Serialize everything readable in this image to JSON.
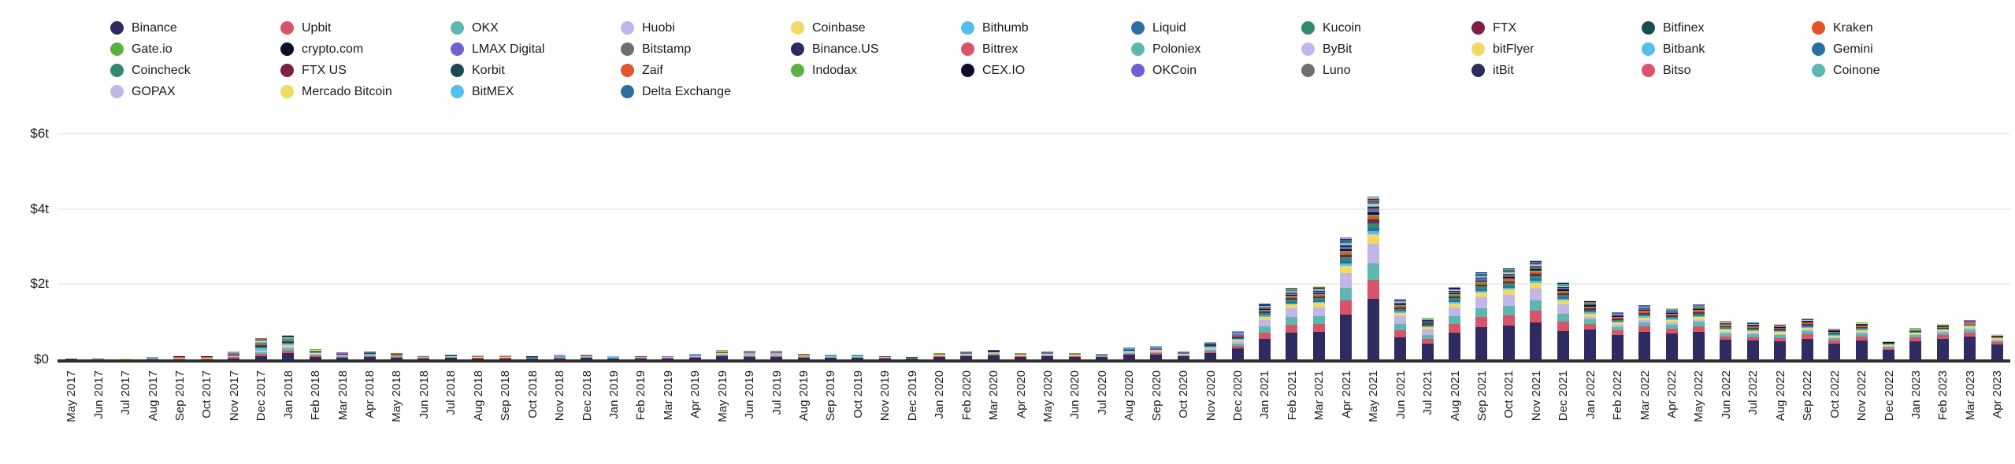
{
  "legend": {
    "items": [
      {
        "label": "Binance",
        "color": "#2e2a62"
      },
      {
        "label": "Upbit",
        "color": "#da5469"
      },
      {
        "label": "OKX",
        "color": "#5cb8ae"
      },
      {
        "label": "Huobi",
        "color": "#c1b6e9"
      },
      {
        "label": "Coinbase",
        "color": "#f2d964"
      },
      {
        "label": "Bithumb",
        "color": "#55bfeb"
      },
      {
        "label": "Liquid",
        "color": "#2d6da5"
      },
      {
        "label": "Kucoin",
        "color": "#33896e"
      },
      {
        "label": "FTX",
        "color": "#7d2045"
      },
      {
        "label": "Bitfinex",
        "color": "#1c4a54"
      },
      {
        "label": "Kraken",
        "color": "#e25429"
      },
      {
        "label": "Gate.io",
        "color": "#5db23f"
      },
      {
        "label": "crypto.com",
        "color": "#0e0b2d"
      },
      {
        "label": "LMAX Digital",
        "color": "#7061d2"
      },
      {
        "label": "Bitstamp",
        "color": "#6f6f73"
      },
      {
        "label": "Binance.US",
        "color": "#2e2a62"
      },
      {
        "label": "Bittrex",
        "color": "#da5469"
      },
      {
        "label": "Poloniex",
        "color": "#5cb8ae"
      },
      {
        "label": "ByBit",
        "color": "#c1b6e9"
      },
      {
        "label": "bitFlyer",
        "color": "#f2d964"
      },
      {
        "label": "Bitbank",
        "color": "#55bfeb"
      },
      {
        "label": "Gemini",
        "color": "#2d6da5"
      },
      {
        "label": "Coincheck",
        "color": "#33896e"
      },
      {
        "label": "FTX US",
        "color": "#7d2045"
      },
      {
        "label": "Korbit",
        "color": "#1c4a54"
      },
      {
        "label": "Zaif",
        "color": "#e25429"
      },
      {
        "label": "Indodax",
        "color": "#5db23f"
      },
      {
        "label": "CEX.IO",
        "color": "#0e0b2d"
      },
      {
        "label": "OKCoin",
        "color": "#7061d2"
      },
      {
        "label": "Luno",
        "color": "#6f6f73"
      },
      {
        "label": "itBit",
        "color": "#2e2a62"
      },
      {
        "label": "Bitso",
        "color": "#da5469"
      },
      {
        "label": "Coinone",
        "color": "#5cb8ae"
      },
      {
        "label": "GOPAX",
        "color": "#c1b6e9"
      },
      {
        "label": "Mercado Bitcoin",
        "color": "#f2d964"
      },
      {
        "label": "BitMEX",
        "color": "#55bfeb"
      },
      {
        "label": "Delta Exchange",
        "color": "#2d6da5"
      }
    ]
  },
  "chart_data": {
    "type": "bar",
    "subtype": "stacked-monthly-volume-by-exchange",
    "unit": "trillion USD",
    "legend_position": "top",
    "grid": "horizontal",
    "yticks": [
      {
        "label": "$0",
        "value": 0
      },
      {
        "label": "$2t",
        "value": 2
      },
      {
        "label": "$4t",
        "value": 4
      },
      {
        "label": "$6t",
        "value": 6
      }
    ],
    "ylim": [
      0,
      6.6
    ],
    "categories": [
      "May 2017",
      "Jun 2017",
      "Jul 2017",
      "Aug 2017",
      "Sep 2017",
      "Oct 2017",
      "Nov 2017",
      "Dec 2017",
      "Jan 2018",
      "Feb 2018",
      "Mar 2018",
      "Apr 2018",
      "May 2018",
      "Jun 2018",
      "Jul 2018",
      "Aug 2018",
      "Sep 2018",
      "Oct 2018",
      "Nov 2018",
      "Dec 2018",
      "Jan 2019",
      "Feb 2019",
      "Mar 2019",
      "Apr 2019",
      "May 2019",
      "Jun 2019",
      "Jul 2019",
      "Aug 2019",
      "Sep 2019",
      "Oct 2019",
      "Nov 2019",
      "Dec 2019",
      "Jan 2020",
      "Feb 2020",
      "Mar 2020",
      "Apr 2020",
      "May 2020",
      "Jun 2020",
      "Jul 2020",
      "Aug 2020",
      "Sep 2020",
      "Oct 2020",
      "Nov 2020",
      "Dec 2020",
      "Jan 2021",
      "Feb 2021",
      "Mar 2021",
      "Apr 2021",
      "May 2021",
      "Jun 2021",
      "Jul 2021",
      "Aug 2021",
      "Sep 2021",
      "Oct 2021",
      "Nov 2021",
      "Dec 2021",
      "Jan 2022",
      "Feb 2022",
      "Mar 2022",
      "Apr 2022",
      "May 2022",
      "Jun 2022",
      "Jul 2022",
      "Aug 2022",
      "Sep 2022",
      "Oct 2022",
      "Nov 2022",
      "Dec 2022",
      "Jan 2023",
      "Feb 2023",
      "Mar 2023",
      "Apr 2023"
    ],
    "totals_trillions": [
      0.02,
      0.04,
      0.03,
      0.07,
      0.08,
      0.08,
      0.21,
      0.58,
      0.65,
      0.28,
      0.19,
      0.22,
      0.17,
      0.11,
      0.13,
      0.1,
      0.1,
      0.08,
      0.12,
      0.14,
      0.08,
      0.1,
      0.09,
      0.14,
      0.25,
      0.23,
      0.23,
      0.15,
      0.13,
      0.13,
      0.1,
      0.07,
      0.17,
      0.21,
      0.26,
      0.17,
      0.21,
      0.17,
      0.15,
      0.31,
      0.35,
      0.21,
      0.46,
      0.75,
      1.48,
      1.9,
      1.95,
      3.24,
      4.33,
      1.61,
      1.11,
      1.94,
      2.32,
      2.42,
      2.65,
      2.05,
      1.57,
      1.27,
      1.44,
      1.36,
      1.46,
      1.02,
      0.98,
      0.94,
      1.09,
      0.82,
      1.0,
      0.5,
      0.84,
      0.94,
      1.05,
      0.67
    ],
    "share_profiles": {
      "y2017": [
        0.14,
        0.15,
        0.06,
        0.05,
        0.05,
        0.14,
        0.01,
        0.005,
        0,
        0.1,
        0.04,
        0.01,
        0,
        0.01,
        0.03,
        0,
        0.05,
        0.04,
        0,
        0.05,
        0.01,
        0.01,
        0.03,
        0,
        0.02,
        0.03,
        0.005,
        0.005,
        0.01,
        0.003,
        0.005,
        0.003,
        0.02,
        0.003,
        0.003,
        0.005,
        0
      ],
      "y2018": [
        0.27,
        0.11,
        0.11,
        0.09,
        0.05,
        0.09,
        0.015,
        0.01,
        0,
        0.07,
        0.035,
        0.015,
        0,
        0.015,
        0.025,
        0,
        0.02,
        0.01,
        0,
        0.03,
        0.02,
        0.01,
        0.015,
        0,
        0.01,
        0.015,
        0.005,
        0.005,
        0.01,
        0.003,
        0.005,
        0.003,
        0.01,
        0.003,
        0.003,
        0.008,
        0.002
      ],
      "y2019": [
        0.33,
        0.09,
        0.11,
        0.11,
        0.05,
        0.06,
        0.02,
        0.012,
        0.005,
        0.04,
        0.035,
        0.02,
        0.002,
        0.02,
        0.02,
        0.002,
        0.012,
        0.006,
        0,
        0.02,
        0.015,
        0.01,
        0.01,
        0,
        0.006,
        0.006,
        0.004,
        0.004,
        0.008,
        0.003,
        0.005,
        0.003,
        0.008,
        0.003,
        0.003,
        0.01,
        0.002
      ],
      "y2020": [
        0.4,
        0.09,
        0.09,
        0.1,
        0.06,
        0.04,
        0.015,
        0.015,
        0.012,
        0.025,
        0.03,
        0.018,
        0.006,
        0.018,
        0.018,
        0.008,
        0.008,
        0.005,
        0.004,
        0.012,
        0.012,
        0.008,
        0.008,
        0.002,
        0.005,
        0.004,
        0.004,
        0.003,
        0.006,
        0.003,
        0.004,
        0.003,
        0.006,
        0.002,
        0.003,
        0.008,
        0.003
      ],
      "y2021": [
        0.38,
        0.12,
        0.105,
        0.125,
        0.058,
        0.019,
        0.019,
        0.033,
        0.014,
        0.009,
        0.019,
        0.014,
        0.014,
        0.014,
        0.007,
        0.01,
        0.004,
        0.003,
        0.005,
        0.005,
        0.005,
        0.005,
        0.005,
        0.003,
        0.004,
        0.001,
        0.003,
        0.002,
        0.003,
        0.002,
        0.003,
        0.002,
        0.003,
        0.002,
        0.002,
        0.003,
        0.002
      ],
      "y2022": [
        0.52,
        0.1,
        0.08,
        0.04,
        0.055,
        0.018,
        0.005,
        0.035,
        0.025,
        0.008,
        0.018,
        0.015,
        0.018,
        0.01,
        0.006,
        0.012,
        0.003,
        0.002,
        0.008,
        0.004,
        0.004,
        0.004,
        0.004,
        0.004,
        0.003,
        0.001,
        0.003,
        0.002,
        0.002,
        0.002,
        0.002,
        0.002,
        0.003,
        0.001,
        0.002,
        0.002,
        0.002
      ],
      "y2023": [
        0.6,
        0.11,
        0.08,
        0.03,
        0.045,
        0.015,
        0,
        0.03,
        0,
        0.007,
        0.015,
        0.015,
        0.012,
        0.008,
        0.005,
        0.008,
        0.002,
        0.002,
        0.01,
        0.004,
        0.004,
        0.003,
        0.004,
        0,
        0.003,
        0.001,
        0.003,
        0.002,
        0.002,
        0.002,
        0.002,
        0.002,
        0.003,
        0.001,
        0.002,
        0.002,
        0.002
      ]
    },
    "profile_by_year": {
      "2017": "y2017",
      "2018": "y2018",
      "2019": "y2019",
      "2020": "y2020",
      "2021": "y2021",
      "2022": "y2022",
      "2023": "y2023"
    },
    "peak": {
      "month": "May 2021",
      "total_trillions": 4.33
    }
  },
  "layout_colors": {
    "background": "#ffffff",
    "gridline": "#ededed",
    "axis_line": "#2f2f2f",
    "text": "#1a1a1a"
  }
}
